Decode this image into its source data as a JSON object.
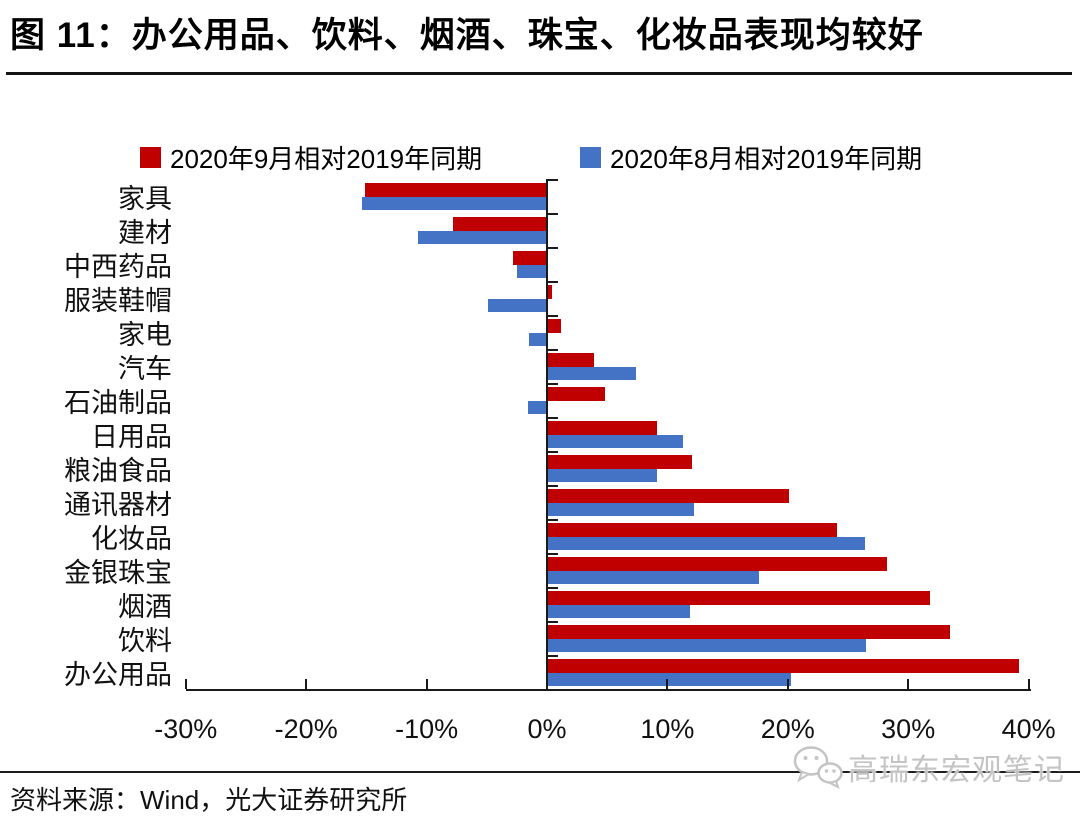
{
  "title": "图 11：办公用品、饮料、烟酒、珠宝、化妆品表现均较好",
  "source": "资料来源：Wind，光大证券研究所",
  "watermark": {
    "icon": "wechat-speech-bubbles-icon",
    "text": "高瑞东宏观笔记"
  },
  "colors": {
    "september": "#C00000",
    "august": "#4472C4",
    "axis": "#1a1a1a",
    "watermark_gray": "#c4c4c4"
  },
  "chart_data": {
    "type": "bar",
    "orientation": "horizontal",
    "title": "图 11：办公用品、饮料、烟酒、珠宝、化妆品表现均较好",
    "unit": "%",
    "xlim": [
      -30,
      40
    ],
    "grid": false,
    "legend_position": "top",
    "categories": [
      "家具",
      "建材",
      "中西药品",
      "服装鞋帽",
      "家电",
      "汽车",
      "石油制品",
      "日用品",
      "粮油食品",
      "通讯器材",
      "化妆品",
      "金银珠宝",
      "烟酒",
      "饮料",
      "办公用品"
    ],
    "series": [
      {
        "name": "2020年9月相对2019年同期",
        "color": "#C00000",
        "values": [
          -15.1,
          -7.8,
          -2.8,
          0.4,
          1.2,
          3.9,
          4.8,
          9.1,
          12.0,
          20.1,
          24.1,
          28.2,
          31.8,
          33.5,
          39.2
        ]
      },
      {
        "name": "2020年8月相对2019年同期",
        "color": "#4472C4",
        "values": [
          -15.4,
          -10.7,
          -2.5,
          -4.9,
          -1.5,
          7.4,
          -1.6,
          11.3,
          9.1,
          12.2,
          26.4,
          17.6,
          11.9,
          26.5,
          20.3
        ]
      }
    ],
    "x_ticks": [
      "-30%",
      "-20%",
      "-10%",
      "0%",
      "10%",
      "20%",
      "30%",
      "40%"
    ],
    "x_tick_values": [
      -30,
      -20,
      -10,
      0,
      10,
      20,
      30,
      40
    ]
  }
}
